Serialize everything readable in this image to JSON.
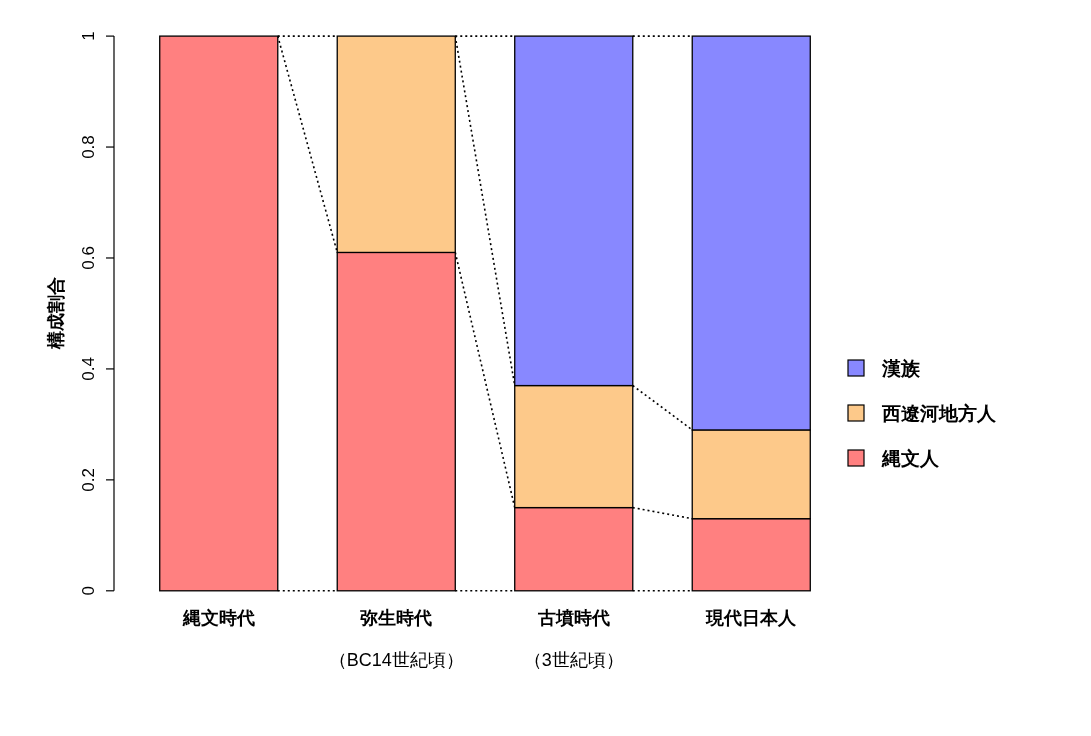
{
  "chart_data": {
    "type": "bar",
    "stacked": true,
    "ylabel": "構成割合",
    "categories": [
      "縄文時代",
      "弥生時代（BC14世紀頃）",
      "古墳時代（3世紀頃）",
      "現代日本人"
    ],
    "series": [
      {
        "name": "縄文人",
        "color": "#ff8080",
        "values": [
          1,
          0.61,
          0.15,
          0.13
        ]
      },
      {
        "name": "西遼河地方人",
        "color": "#fdc98a",
        "values": [
          0,
          0.39,
          0.22,
          0.16
        ]
      },
      {
        "name": "漢族",
        "color": "#8888ff",
        "values": [
          0,
          0,
          0.63,
          0.71
        ]
      }
    ],
    "ylim": [
      0,
      1
    ],
    "yticks": [
      0,
      0.2,
      0.4,
      0.6,
      0.8,
      1
    ],
    "grid": false,
    "legend": "right"
  }
}
